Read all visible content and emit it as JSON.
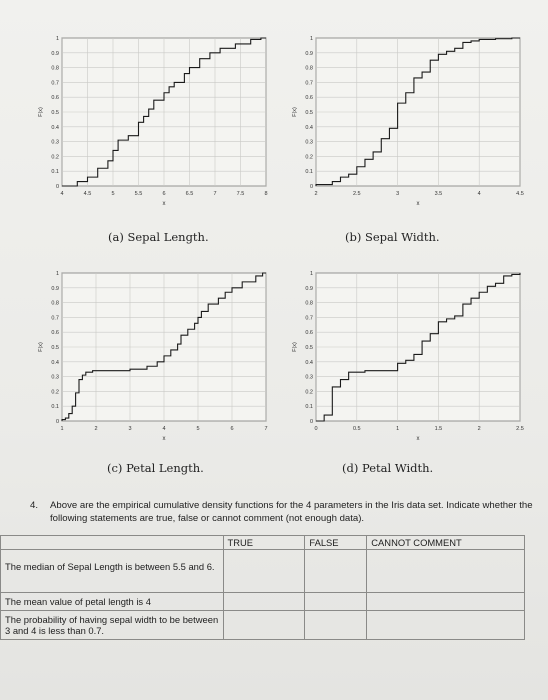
{
  "chart_data": [
    {
      "type": "line",
      "caption": "(a) Sepal Length.",
      "ylabel": "F(x)",
      "xlabel": "x",
      "xlim": [
        4.0,
        8.0
      ],
      "ylim": [
        0,
        1
      ],
      "xticks": [
        "4",
        "4.5",
        "5",
        "5.5",
        "6",
        "6.5",
        "7",
        "7.5",
        "8"
      ],
      "yticks": [
        "0",
        "0.1",
        "0.2",
        "0.3",
        "0.4",
        "0.5",
        "0.6",
        "0.7",
        "0.8",
        "0.9",
        "1"
      ],
      "grid": true,
      "series": [
        {
          "x": [
            4.3,
            4.5,
            4.7,
            4.9,
            5.0,
            5.1,
            5.3,
            5.5,
            5.6,
            5.7,
            5.8,
            6.0,
            6.1,
            6.2,
            6.4,
            6.5,
            6.7,
            6.9,
            7.1,
            7.4,
            7.7,
            7.9
          ],
          "y": [
            0.03,
            0.06,
            0.12,
            0.17,
            0.24,
            0.31,
            0.34,
            0.43,
            0.47,
            0.52,
            0.58,
            0.63,
            0.67,
            0.7,
            0.76,
            0.8,
            0.86,
            0.9,
            0.93,
            0.96,
            0.99,
            1.0
          ]
        }
      ]
    },
    {
      "type": "line",
      "caption": "(b) Sepal Width.",
      "ylabel": "F(x)",
      "xlabel": "x",
      "xlim": [
        2.0,
        4.5
      ],
      "ylim": [
        0,
        1
      ],
      "xticks": [
        "2",
        "2.5",
        "3",
        "3.5",
        "4",
        "4.5"
      ],
      "yticks": [
        "0",
        "0.1",
        "0.2",
        "0.3",
        "0.4",
        "0.5",
        "0.6",
        "0.7",
        "0.8",
        "0.9",
        "1"
      ],
      "grid": true,
      "series": [
        {
          "x": [
            2.0,
            2.2,
            2.3,
            2.4,
            2.5,
            2.6,
            2.7,
            2.8,
            2.9,
            3.0,
            3.1,
            3.2,
            3.3,
            3.4,
            3.5,
            3.6,
            3.7,
            3.8,
            3.9,
            4.0,
            4.2,
            4.4
          ],
          "y": [
            0.01,
            0.03,
            0.06,
            0.08,
            0.13,
            0.18,
            0.23,
            0.32,
            0.39,
            0.56,
            0.63,
            0.73,
            0.77,
            0.85,
            0.89,
            0.91,
            0.93,
            0.97,
            0.98,
            0.99,
            0.995,
            1.0
          ]
        }
      ]
    },
    {
      "type": "line",
      "caption": "(c) Petal Length.",
      "ylabel": "F(x)",
      "xlabel": "x",
      "xlim": [
        1,
        7
      ],
      "ylim": [
        0,
        1
      ],
      "xticks": [
        "1",
        "2",
        "3",
        "4",
        "5",
        "6",
        "7"
      ],
      "yticks": [
        "0",
        "0.1",
        "0.2",
        "0.3",
        "0.4",
        "0.5",
        "0.6",
        "0.7",
        "0.8",
        "0.9",
        "1"
      ],
      "grid": true,
      "series": [
        {
          "x": [
            1.0,
            1.1,
            1.2,
            1.3,
            1.4,
            1.5,
            1.6,
            1.7,
            1.9,
            3.0,
            3.5,
            3.8,
            4.0,
            4.2,
            4.4,
            4.5,
            4.7,
            4.9,
            5.0,
            5.1,
            5.3,
            5.6,
            5.8,
            6.0,
            6.3,
            6.7,
            6.9
          ],
          "y": [
            0.01,
            0.02,
            0.05,
            0.1,
            0.19,
            0.28,
            0.31,
            0.33,
            0.34,
            0.35,
            0.37,
            0.4,
            0.44,
            0.48,
            0.52,
            0.58,
            0.62,
            0.66,
            0.7,
            0.74,
            0.79,
            0.83,
            0.87,
            0.9,
            0.94,
            0.98,
            1.0
          ]
        }
      ]
    },
    {
      "type": "line",
      "caption": "(d) Petal Width.",
      "ylabel": "F(x)",
      "xlabel": "x",
      "xlim": [
        0,
        2.5
      ],
      "ylim": [
        0,
        1
      ],
      "xticks": [
        "0",
        "0.5",
        "1",
        "1.5",
        "2",
        "2.5"
      ],
      "yticks": [
        "0",
        "0.1",
        "0.2",
        "0.3",
        "0.4",
        "0.5",
        "0.6",
        "0.7",
        "0.8",
        "0.9",
        "1"
      ],
      "grid": true,
      "series": [
        {
          "x": [
            0.1,
            0.2,
            0.3,
            0.4,
            0.6,
            1.0,
            1.1,
            1.2,
            1.3,
            1.4,
            1.5,
            1.6,
            1.7,
            1.8,
            1.9,
            2.0,
            2.1,
            2.2,
            2.3,
            2.4,
            2.5
          ],
          "y": [
            0.04,
            0.23,
            0.28,
            0.33,
            0.34,
            0.39,
            0.41,
            0.45,
            0.54,
            0.59,
            0.67,
            0.69,
            0.71,
            0.79,
            0.83,
            0.87,
            0.91,
            0.93,
            0.98,
            0.99,
            1.0
          ]
        }
      ]
    }
  ],
  "question": {
    "number": "4.",
    "text": "Above are the empirical cumulative density functions for the 4 parameters in the Iris data set. Indicate whether the following statements are true, false or cannot comment (not enough data)."
  },
  "table": {
    "headers": [
      "",
      "TRUE",
      "FALSE",
      "CANNOT COMMENT"
    ],
    "rows": [
      "The median of Sepal Length is between 5.5 and 6.",
      "The mean value of petal length is 4",
      "The probability of having sepal width to be between 3 and 4 is less than 0.7."
    ]
  }
}
